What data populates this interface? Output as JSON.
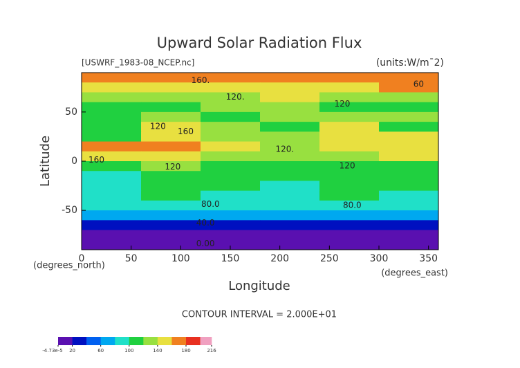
{
  "chart_data": {
    "type": "contour",
    "title": "Upward Solar Radiation Flux",
    "subtitle": "[USWRF_1983-08_NCEP.nc]",
    "units": "(units:W/m¯2)",
    "x_label": "Longitude",
    "y_label": "Latitude",
    "x_unit_label": "(degrees_east)",
    "y_unit_label": "(degrees_north)",
    "contour_interval": "CONTOUR INTERVAL = 2.000E+01",
    "x": [
      30,
      90,
      150,
      210,
      270,
      330
    ],
    "y": [
      85,
      75,
      65,
      55,
      45,
      35,
      25,
      15,
      5,
      -5,
      -15,
      -25,
      -35,
      -45,
      -55,
      -65,
      -75,
      -85
    ],
    "z": [
      [
        170,
        170,
        170,
        170,
        170,
        170
      ],
      [
        150,
        140,
        140,
        150,
        150,
        160
      ],
      [
        120,
        120,
        130,
        140,
        130,
        120
      ],
      [
        110,
        110,
        120,
        130,
        110,
        110
      ],
      [
        110,
        120,
        110,
        130,
        130,
        120
      ],
      [
        110,
        140,
        120,
        110,
        140,
        110
      ],
      [
        110,
        150,
        130,
        120,
        150,
        150
      ],
      [
        160,
        170,
        140,
        130,
        140,
        150
      ],
      [
        140,
        140,
        130,
        120,
        130,
        140
      ],
      [
        110,
        120,
        110,
        100,
        110,
        110
      ],
      [
        90,
        100,
        100,
        100,
        100,
        100
      ],
      [
        90,
        100,
        100,
        90,
        100,
        100
      ],
      [
        90,
        100,
        90,
        90,
        100,
        90
      ],
      [
        90,
        90,
        90,
        90,
        90,
        90
      ],
      [
        70,
        70,
        70,
        70,
        70,
        70
      ],
      [
        30,
        30,
        30,
        30,
        30,
        30
      ],
      [
        10,
        10,
        10,
        10,
        10,
        10
      ],
      [
        0,
        0,
        0,
        0,
        0,
        0
      ]
    ],
    "levels": [
      0,
      20,
      40,
      60,
      80,
      100,
      120,
      140,
      160,
      180,
      200,
      216
    ],
    "colors": [
      "#5a10b0",
      "#0010c0",
      "#0060f0",
      "#00a8f0",
      "#20e0c8",
      "#20d040",
      "#98e040",
      "#e8e040",
      "#f08020",
      "#e83020",
      "#f0a0c0"
    ],
    "xlim": [
      0,
      360
    ],
    "ylim": [
      -90,
      90
    ],
    "xticks": [
      0,
      50,
      100,
      150,
      200,
      250,
      300,
      350
    ],
    "yticks": [
      -50,
      0,
      50
    ],
    "cbar_ticks": [
      {
        "value": -4.73e-05,
        "label": "-4.73e-5"
      },
      20,
      60,
      100,
      140,
      180,
      216
    ],
    "annotations": [
      {
        "text": "160.",
        "x": 120,
        "y": 82
      },
      {
        "text": "120.",
        "x": 155,
        "y": 65
      },
      {
        "text": "120",
        "x": 77,
        "y": 35
      },
      {
        "text": "160",
        "x": 105,
        "y": 30
      },
      {
        "text": "160",
        "x": 15,
        "y": 1
      },
      {
        "text": "120",
        "x": 92,
        "y": -6
      },
      {
        "text": "120.",
        "x": 205,
        "y": 12
      },
      {
        "text": "120",
        "x": 263,
        "y": 58
      },
      {
        "text": "120",
        "x": 268,
        "y": -5
      },
      {
        "text": "60",
        "x": 340,
        "y": 78
      },
      {
        "text": "80.0",
        "x": 130,
        "y": -44
      },
      {
        "text": "80.0",
        "x": 273,
        "y": -45
      },
      {
        "text": "40.0",
        "x": 125,
        "y": -63
      },
      {
        "text": "0.00",
        "x": 125,
        "y": -84
      }
    ]
  }
}
